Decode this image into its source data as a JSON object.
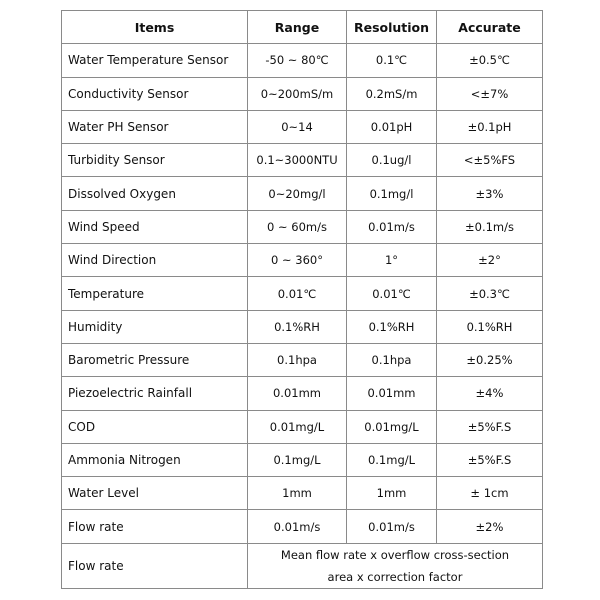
{
  "headers": [
    "Items",
    "Range",
    "Resolution",
    "Accurate"
  ],
  "rows": [
    [
      "Water Temperature Sensor",
      "-50 ~ 80℃",
      "0.1℃",
      "±0.5℃"
    ],
    [
      "Conductivity Sensor",
      "0~200mS/m",
      "0.2mS/m",
      "<±7%"
    ],
    [
      "Water PH Sensor",
      "0~14",
      "0.01pH",
      "±0.1pH"
    ],
    [
      "Turbidity Sensor",
      "0.1~3000NTU",
      "0.1ug/l",
      "<±5%FS"
    ],
    [
      "Dissolved Oxygen",
      "0~20mg/l",
      "0.1mg/l",
      "±3%"
    ],
    [
      "Wind Speed",
      "0 ~ 60m/s",
      "0.01m/s",
      "±0.1m/s"
    ],
    [
      "Wind Direction",
      "0 ~ 360°",
      "1°",
      "±2°"
    ],
    [
      "Temperature",
      "0.01℃",
      "0.01℃",
      "±0.3℃"
    ],
    [
      "Humidity",
      "0.1%RH",
      "0.1%RH",
      "0.1%RH"
    ],
    [
      "Barometric Pressure",
      "0.1hpa",
      "0.1hpa",
      "±0.25%"
    ],
    [
      "Piezoelectric Rainfall",
      "0.01mm",
      "0.01mm",
      "±4%"
    ],
    [
      "COD",
      "0.01mg/L",
      "0.01mg/L",
      "±5%F.S"
    ],
    [
      "Ammonia Nitrogen",
      "0.1mg/L",
      "0.1mg/L",
      "±5%F.S"
    ],
    [
      "Water Level",
      "1mm",
      "1mm",
      "± 1cm"
    ],
    [
      "Flow rate",
      "0.01m/s",
      "0.01m/s",
      "±2%"
    ]
  ],
  "last_row": {
    "item": "Flow rate",
    "line1": "Mean flow rate x overflow cross-section",
    "line2": "area x correction factor"
  }
}
